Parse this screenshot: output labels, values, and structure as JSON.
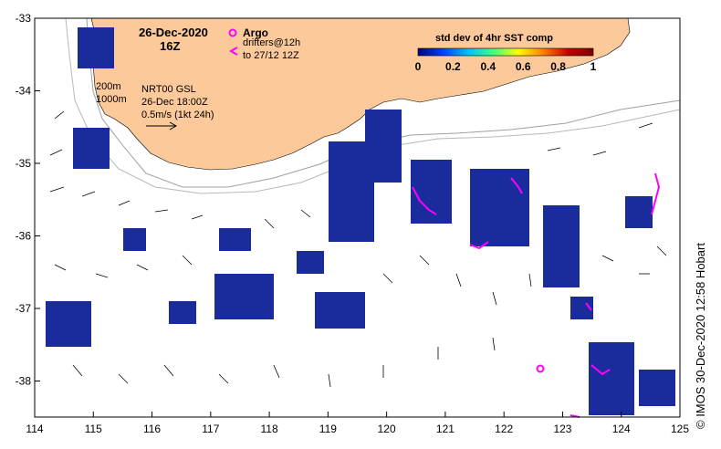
{
  "map": {
    "date_line1": "26-Dec-2020",
    "date_line2": "16Z",
    "legend": {
      "argo_label": "Argo",
      "drifters_line1": "drifters@12h",
      "drifters_line2": "to 27/12 12Z"
    },
    "colorbar": {
      "title": "std dev of 4hr SST comp",
      "ticks": [
        "0",
        "0.2",
        "0.4",
        "0.6",
        "0.8",
        "1"
      ],
      "stops": [
        "#000080",
        "#0040ff",
        "#00c0ff",
        "#40ff80",
        "#ffff00",
        "#ff8000",
        "#c00000",
        "#800000"
      ]
    },
    "depth_labels": [
      "200m",
      "1000m"
    ],
    "current_info": {
      "line1": "NRT00 GSL",
      "line2": "26-Dec 18:00Z",
      "line3": "0.5m/s (1kt 24h)"
    },
    "credit": "© IMOS 30-Dec-2020 12:58 Hobart",
    "lon_ticks": [
      "114",
      "115",
      "116",
      "117",
      "118",
      "119",
      "120",
      "121",
      "122",
      "123",
      "124",
      "125"
    ],
    "lat_ticks": [
      "-33",
      "-34",
      "-35",
      "-36",
      "-37",
      "-38"
    ],
    "colors": {
      "land": "#fcc99b",
      "argo": "#ff00ff",
      "data_blue": "#1a2b9c"
    }
  }
}
